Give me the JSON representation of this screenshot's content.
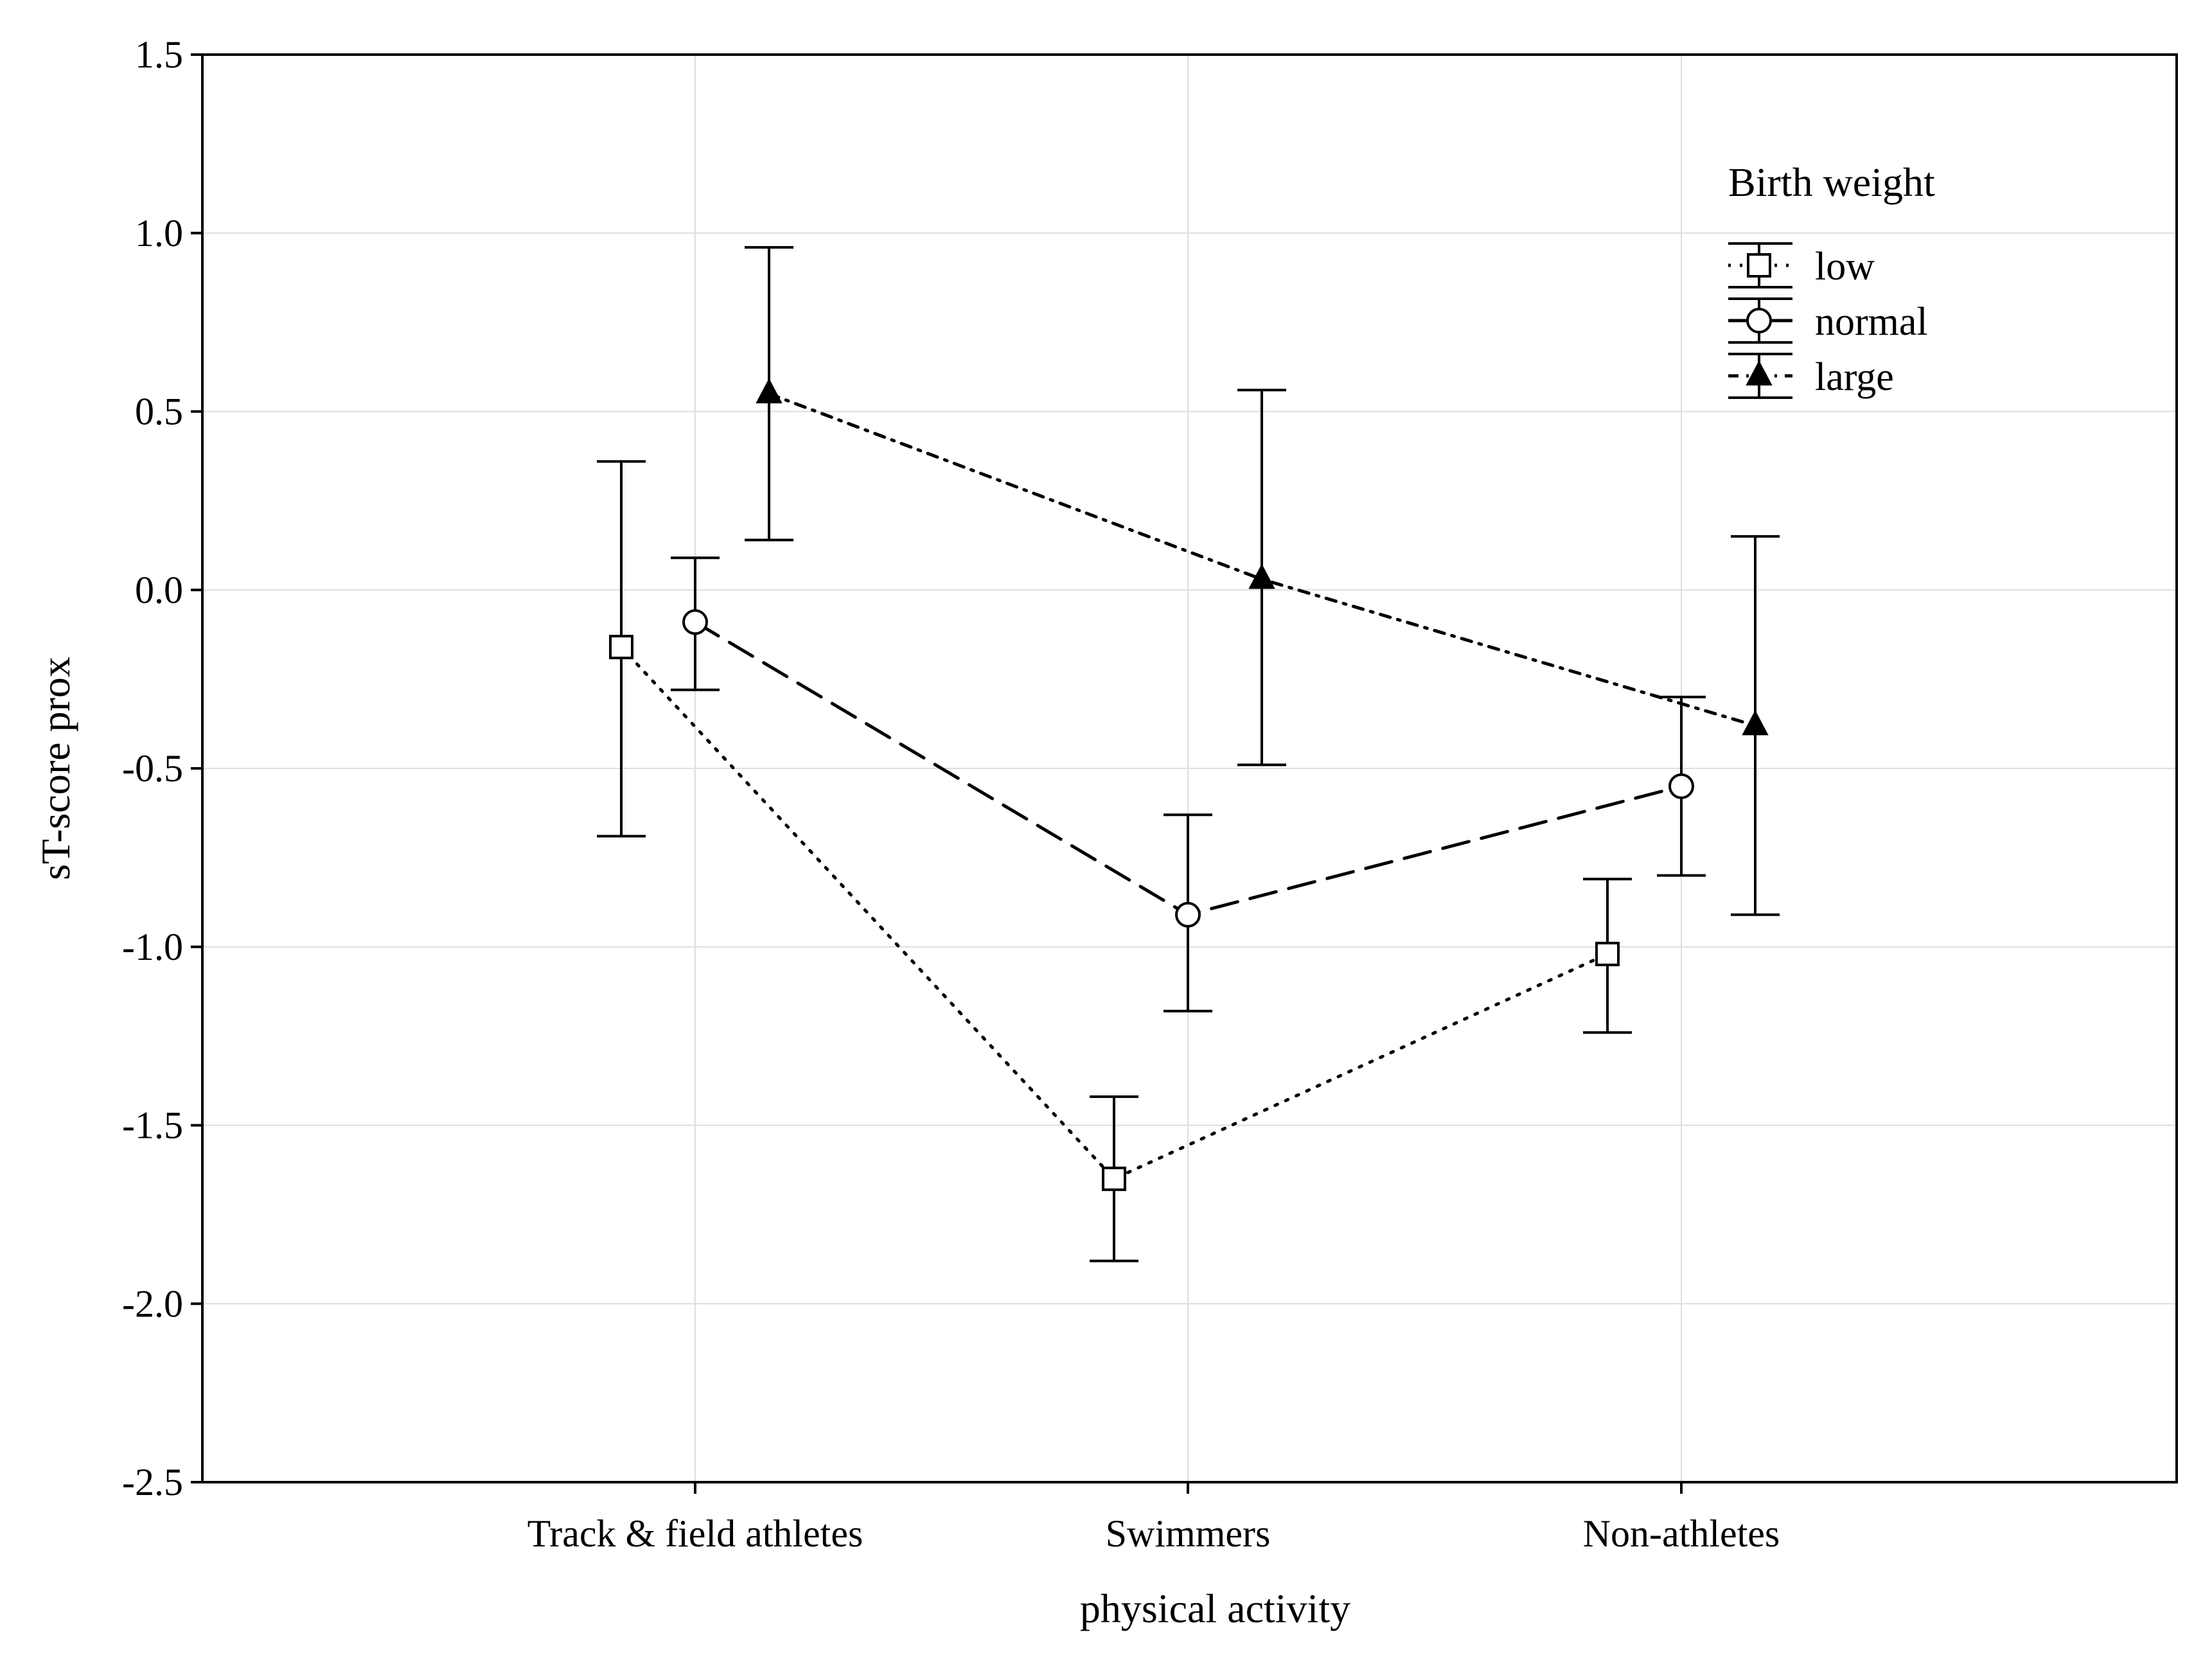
{
  "chart_data": {
    "type": "line",
    "title": "",
    "xlabel": "physical activity",
    "ylabel": "sT-score prox",
    "categories": [
      "Track & field athletes",
      "Swimmers",
      "Non-athletes"
    ],
    "ylim": [
      -2.5,
      1.5
    ],
    "yticks": [
      "1.5",
      "1.0",
      "0.5",
      "0.0",
      "-0.5",
      "-1.0",
      "-1.5",
      "-2.0",
      "-2.5"
    ],
    "ytick_values": [
      1.5,
      1.0,
      0.5,
      0.0,
      -0.5,
      -1.0,
      -1.5,
      -2.0,
      -2.5
    ],
    "grid": true,
    "legend": {
      "title": "Birth weight",
      "position": "top-right",
      "entries": [
        "low",
        "normal",
        "large"
      ]
    },
    "series": [
      {
        "name": "low",
        "marker": "square",
        "line_style": "dotted",
        "values": [
          -0.16,
          -1.65,
          -1.02
        ],
        "lower": [
          -0.69,
          -1.88,
          -1.24
        ],
        "upper": [
          0.36,
          -1.42,
          -0.81
        ]
      },
      {
        "name": "normal",
        "marker": "circle",
        "line_style": "dashed",
        "values": [
          -0.09,
          -0.91,
          -0.55
        ],
        "lower": [
          -0.28,
          -1.18,
          -0.8
        ],
        "upper": [
          0.09,
          -0.63,
          -0.3
        ]
      },
      {
        "name": "large",
        "marker": "triangle",
        "line_style": "dash-dot",
        "values": [
          0.55,
          0.03,
          -0.38
        ],
        "lower": [
          0.14,
          -0.49,
          -0.91
        ],
        "upper": [
          0.96,
          0.56,
          0.15
        ]
      }
    ]
  }
}
